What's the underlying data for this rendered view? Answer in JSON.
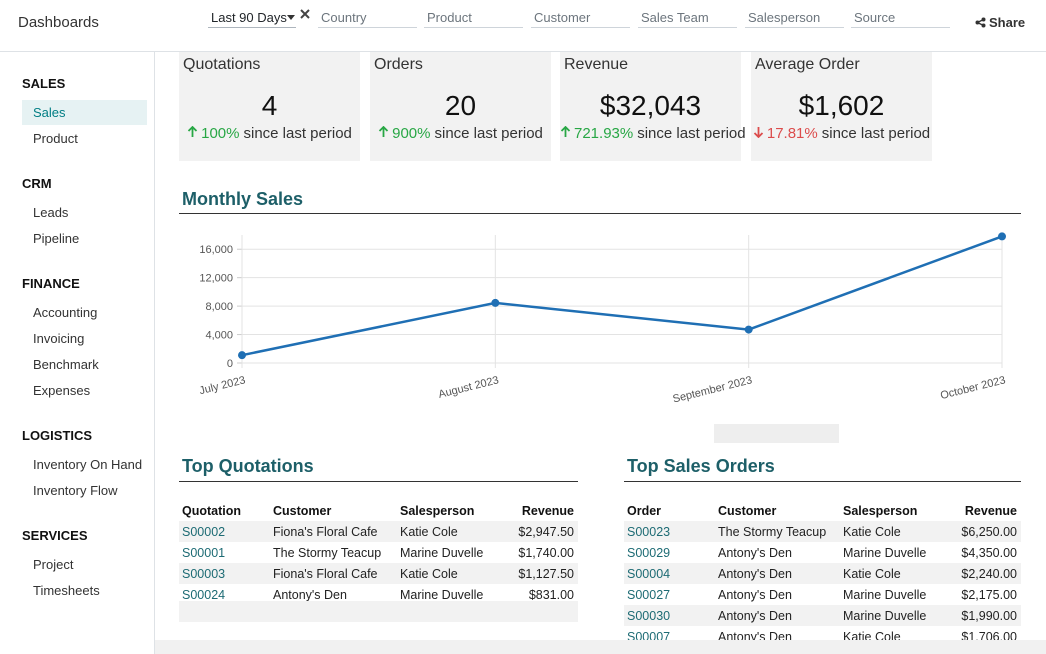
{
  "header": {
    "title": "Dashboards",
    "date_filter": "Last 90 Days",
    "filters": [
      "Country",
      "Product",
      "Customer",
      "Sales Team",
      "Salesperson",
      "Source"
    ],
    "share": "Share"
  },
  "sidebar": [
    {
      "heading": "SALES",
      "items": [
        "Sales",
        "Product"
      ]
    },
    {
      "heading": "CRM",
      "items": [
        "Leads",
        "Pipeline"
      ]
    },
    {
      "heading": "FINANCE",
      "items": [
        "Accounting",
        "Invoicing",
        "Benchmark",
        "Expenses"
      ]
    },
    {
      "heading": "LOGISTICS",
      "items": [
        "Inventory On Hand",
        "Inventory Flow"
      ]
    },
    {
      "heading": "SERVICES",
      "items": [
        "Project",
        "Timesheets"
      ]
    }
  ],
  "kpis": [
    {
      "label": "Quotations",
      "value": "4",
      "change": "100%",
      "note": "since last period",
      "trend": "up"
    },
    {
      "label": "Orders",
      "value": "20",
      "change": "900%",
      "note": "since last period",
      "trend": "up"
    },
    {
      "label": "Revenue",
      "value": "$32,043",
      "change": "721.93%",
      "note": "since last period",
      "trend": "up"
    },
    {
      "label": "Average Order",
      "value": "$1,602",
      "change": "17.81%",
      "note": "since last period",
      "trend": "down"
    }
  ],
  "chart_data": {
    "type": "line",
    "title": "Monthly Sales",
    "categories": [
      "July 2023",
      "August 2023",
      "September 2023",
      "October 2023"
    ],
    "series": [
      {
        "color": "#1f6fb4",
        "values": [
          1100,
          8450,
          4700,
          17800
        ]
      }
    ],
    "ylim": [
      0,
      18000
    ],
    "yticks": [
      0,
      {
        "value": 4000,
        "label": "4,000"
      },
      {
        "value": 8000,
        "label": "8,000"
      },
      {
        "value": 12000,
        "label": "12,000"
      },
      {
        "value": 16000,
        "label": "16,000"
      }
    ],
    "grid": true
  },
  "top_quotations": {
    "title": "Top Quotations",
    "columns": [
      "Quotation",
      "Customer",
      "Salesperson",
      "Revenue"
    ],
    "rows": [
      [
        "S00002",
        "Fiona's Floral Cafe",
        "Katie Cole",
        "$2,947.50"
      ],
      [
        "S00001",
        "The Stormy Teacup",
        "Marine Duvelle",
        "$1,740.00"
      ],
      [
        "S00003",
        "Fiona's Floral Cafe",
        "Katie Cole",
        "$1,127.50"
      ],
      [
        "S00024",
        "Antony's Den",
        "Marine Duvelle",
        "$831.00"
      ]
    ]
  },
  "top_sales_orders": {
    "title": "Top Sales Orders",
    "columns": [
      "Order",
      "Customer",
      "Salesperson",
      "Revenue"
    ],
    "rows": [
      [
        "S00023",
        "The Stormy Teacup",
        "Katie Cole",
        "$6,250.00"
      ],
      [
        "S00029",
        "Antony's Den",
        "Marine Duvelle",
        "$4,350.00"
      ],
      [
        "S00004",
        "Antony's Den",
        "Katie Cole",
        "$2,240.00"
      ],
      [
        "S00027",
        "Antony's Den",
        "Marine Duvelle",
        "$2,175.00"
      ],
      [
        "S00030",
        "Antony's Den",
        "Marine Duvelle",
        "$1,990.00"
      ],
      [
        "S00007",
        "Antony's Den",
        "Katie Cole",
        "$1,706.00"
      ]
    ]
  }
}
